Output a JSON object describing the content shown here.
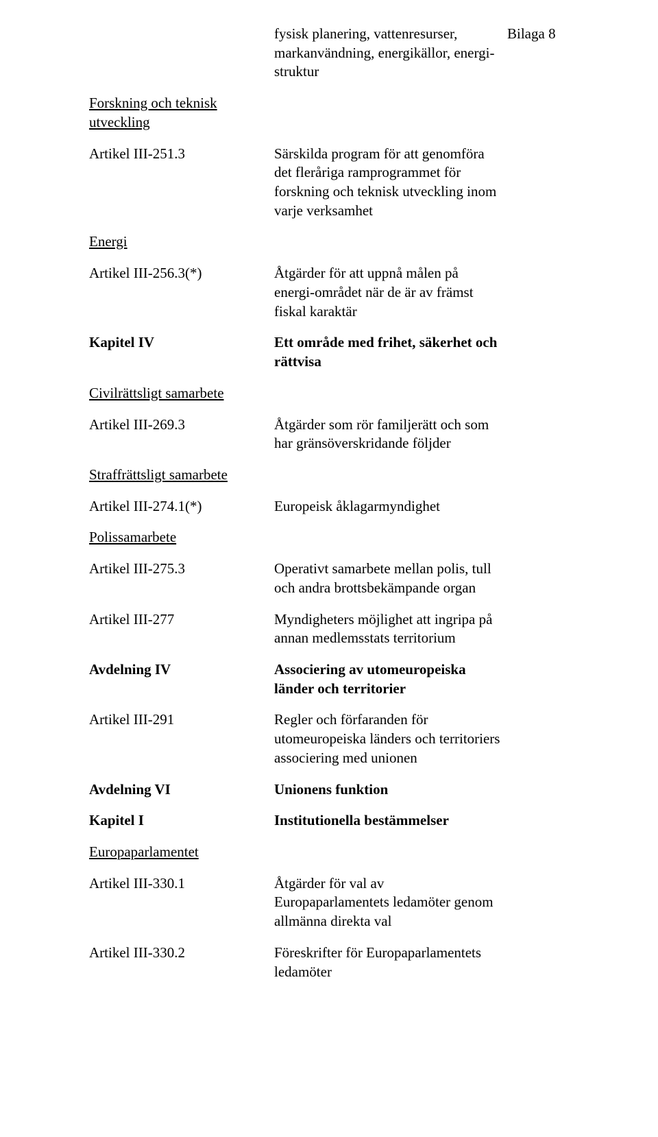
{
  "header": {
    "desc": "fysisk planering, vattenresurser, markanvändning, energikällor, energi-struktur",
    "annex": "Bilaga 8"
  },
  "rows": [
    {
      "left": "Forskning och teknisk utveckling",
      "leftStyle": "ul",
      "mid": "",
      "right": ""
    },
    {
      "left": "Artikel III-251.3",
      "leftStyle": "",
      "mid": "Särskilda program för att genomföra det fleråriga ramprogrammet för forskning och teknisk utveckling inom varje verksamhet",
      "right": ""
    },
    {
      "left": "Energi",
      "leftStyle": "ul",
      "mid": "",
      "right": ""
    },
    {
      "left": "Artikel III-256.3(*)",
      "leftStyle": "",
      "mid": "Åtgärder för att uppnå målen på energi-området när de är av främst fiskal karaktär",
      "right": ""
    },
    {
      "left": "Kapitel IV",
      "leftStyle": "bold",
      "mid": "Ett område med frihet, säkerhet och rättvisa",
      "midStyle": "bold",
      "right": ""
    },
    {
      "left": "Civilrättsligt samarbete",
      "leftStyle": "ul",
      "mid": "",
      "right": ""
    },
    {
      "left": "Artikel III-269.3",
      "leftStyle": "",
      "mid": "Åtgärder som rör familjerätt och som har gränsöverskridande följder",
      "right": ""
    },
    {
      "left": "Straffrättsligt samarbete",
      "leftStyle": "ul",
      "mid": "",
      "right": ""
    },
    {
      "left": "Artikel III-274.1(*)",
      "leftStyle": "",
      "mid": "Europeisk åklagarmyndighet",
      "right": ""
    },
    {
      "left": "Polissamarbete",
      "leftStyle": "ul",
      "mid": "",
      "right": ""
    },
    {
      "left": "Artikel III-275.3",
      "leftStyle": "",
      "mid": "Operativt samarbete mellan polis, tull och andra brottsbekämpande organ",
      "right": ""
    },
    {
      "left": "Artikel III-277",
      "leftStyle": "",
      "mid": "Myndigheters möjlighet att ingripa på annan medlemsstats territorium",
      "right": ""
    },
    {
      "left": "Avdelning IV",
      "leftStyle": "bold",
      "mid": "Associering av utomeuropeiska länder och territorier",
      "midStyle": "bold",
      "right": ""
    },
    {
      "left": "Artikel III-291",
      "leftStyle": "",
      "mid": "Regler och förfaranden för utomeuropeiska länders och territoriers associering med unionen",
      "right": ""
    },
    {
      "left": "Avdelning VI",
      "leftStyle": "bold",
      "mid": "Unionens funktion",
      "midStyle": "bold",
      "right": ""
    },
    {
      "left": "Kapitel I",
      "leftStyle": "bold",
      "mid": "Institutionella bestämmelser",
      "midStyle": "bold",
      "right": ""
    },
    {
      "left": "Europaparlamentet",
      "leftStyle": "ul",
      "mid": "",
      "right": ""
    },
    {
      "left": "Artikel III-330.1",
      "leftStyle": "",
      "mid": "Åtgärder för val av Europaparlamentets ledamöter genom allmänna direkta val",
      "right": ""
    },
    {
      "left": "Artikel III-330.2",
      "leftStyle": "",
      "mid": "Föreskrifter för Europaparlamentets ledamöter",
      "right": ""
    }
  ]
}
